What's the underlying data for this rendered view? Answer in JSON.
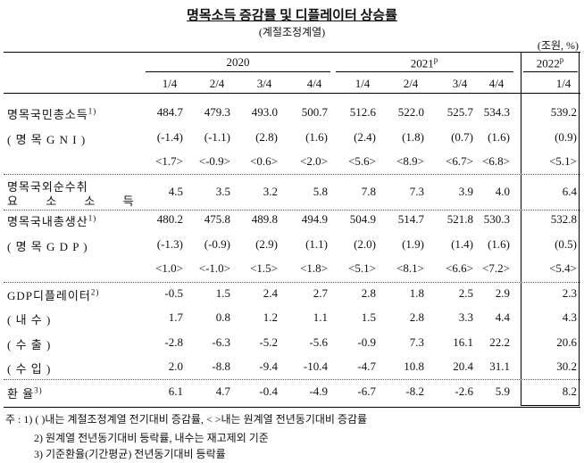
{
  "title": "명목소득 증감률 및 디플레이터 상승률",
  "subtitle": "(계절조정계열)",
  "unit": "(조원, %)",
  "years": [
    {
      "label": "2020",
      "sup": ""
    },
    {
      "label": "2021",
      "sup": "p"
    },
    {
      "label": "2022",
      "sup": "p"
    }
  ],
  "quarters": [
    "1/4",
    "2/4",
    "3/4",
    "4/4",
    "1/4",
    "2/4",
    "3/4",
    "4/4",
    "1/4"
  ],
  "rows": [
    {
      "label": "명목국민총소득",
      "sup": "1)",
      "values": [
        "484.7",
        "479.3",
        "493.0",
        "500.7",
        "512.6",
        "522.0",
        "525.7",
        "534.3",
        "539.2"
      ]
    },
    {
      "label": "( 명 목 G N I )",
      "sup": "",
      "values": [
        "(-1.4)",
        "(-1.1)",
        "(2.8)",
        "(1.6)",
        "(2.4)",
        "(1.8)",
        "(0.7)",
        "(1.6)",
        "(0.9)"
      ]
    },
    {
      "label": "",
      "sup": "",
      "values": [
        "<1.7>",
        "<-0.9>",
        "<0.6>",
        "<2.0>",
        "<5.6>",
        "<8.9>",
        "<6.7>",
        "<6.8>",
        "<5.1>"
      ]
    },
    {
      "label": "명목국외순수취",
      "label2": "요 소 소 득",
      "sup": "",
      "values": [
        "4.5",
        "3.5",
        "3.2",
        "5.8",
        "7.8",
        "7.3",
        "3.9",
        "4.0",
        "6.4"
      ]
    },
    {
      "label": "명목국내총생산",
      "sup": "1)",
      "values": [
        "480.2",
        "475.8",
        "489.8",
        "494.9",
        "504.9",
        "514.7",
        "521.8",
        "530.3",
        "532.8"
      ]
    },
    {
      "label": "( 명 목 G D P )",
      "sup": "",
      "values": [
        "(-1.3)",
        "(-0.9)",
        "(2.9)",
        "(1.1)",
        "(2.0)",
        "(1.9)",
        "(1.4)",
        "(1.6)",
        "(0.5)"
      ]
    },
    {
      "label": "",
      "sup": "",
      "values": [
        "<1.0>",
        "<-1.0>",
        "<1.5>",
        "<1.8>",
        "<5.1>",
        "<8.1>",
        "<6.6>",
        "<7.2>",
        "<5.4>"
      ]
    },
    {
      "label": "GDP디플레이터",
      "sup": "2)",
      "values": [
        "-0.5",
        "1.5",
        "2.4",
        "2.7",
        "2.8",
        "1.8",
        "2.5",
        "2.9",
        "2.3"
      ]
    },
    {
      "label": "(  내      수  )",
      "sup": "",
      "values": [
        "1.7",
        "0.8",
        "1.2",
        "1.1",
        "1.5",
        "2.8",
        "3.3",
        "4.4",
        "4.3"
      ]
    },
    {
      "label": "(  수      출  )",
      "sup": "",
      "values": [
        "-2.8",
        "-6.3",
        "-5.2",
        "-5.6",
        "-0.9",
        "7.3",
        "16.1",
        "22.2",
        "20.6"
      ]
    },
    {
      "label": "(  수      입  )",
      "sup": "",
      "values": [
        "2.0",
        "-8.8",
        "-9.4",
        "-10.4",
        "-4.7",
        "10.8",
        "20.4",
        "31.1",
        "30.2"
      ]
    },
    {
      "label": "환            율",
      "sup": "3)",
      "values": [
        "6.1",
        "4.7",
        "-0.4",
        "-4.9",
        "-6.7",
        "-8.2",
        "-2.6",
        "5.9",
        "8.2"
      ]
    }
  ],
  "notes": [
    "주 : 1) (  )내는 계절조정계열 전기대비 증감률, <  >내는 원계열 전년동기대비 증감률",
    "2) 원계열 전년동기대비 등락률, 내수는 재고제외 기준",
    "3) 기준환율(기간평균) 전년동기대비 등락률"
  ]
}
